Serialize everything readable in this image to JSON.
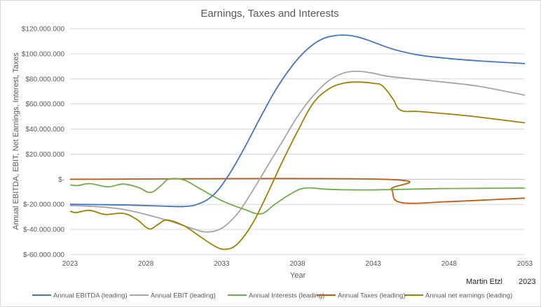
{
  "chart_data": {
    "type": "line",
    "title": "Earnings, Taxes and Interests",
    "xlabel": "Year",
    "ylabel": "Annual EBITDA, EBIT, Net Earnings, Interest, Taxes",
    "xlim": [
      2023,
      2053
    ],
    "ylim": [
      -60000000,
      120000000
    ],
    "x_ticks": [
      2023,
      2028,
      2033,
      2038,
      2043,
      2048,
      2053
    ],
    "y_ticks": [
      {
        "value": 120000000,
        "label": "$120.000.000"
      },
      {
        "value": 100000000,
        "label": "$100.000.000"
      },
      {
        "value": 80000000,
        "label": "$80.000.000"
      },
      {
        "value": 60000000,
        "label": "$60.000.000"
      },
      {
        "value": 40000000,
        "label": "$40.000.000"
      },
      {
        "value": 20000000,
        "label": "$20.000.000"
      },
      {
        "value": 0,
        "label": "$-"
      },
      {
        "value": -20000000,
        "label": "$-20.000.000"
      },
      {
        "value": -40000000,
        "label": "$-40.000.000"
      },
      {
        "value": -60000000,
        "label": "$-60.000.000"
      }
    ],
    "grid": true,
    "legend_position": "bottom",
    "series": [
      {
        "name": "Annual EBITDA (leading)",
        "color": "#4472c4",
        "points": [
          [
            2023,
            -20000000
          ],
          [
            2025,
            -20200000
          ],
          [
            2027,
            -20600000
          ],
          [
            2029,
            -21300000
          ],
          [
            2030.5,
            -21700000
          ],
          [
            2031.5,
            -19500000
          ],
          [
            2032.5,
            -12000000
          ],
          [
            2033.5,
            4000000
          ],
          [
            2034.5,
            25000000
          ],
          [
            2035.5,
            48000000
          ],
          [
            2036.5,
            70000000
          ],
          [
            2037.5,
            88000000
          ],
          [
            2038.5,
            102000000
          ],
          [
            2039.5,
            111000000
          ],
          [
            2040.5,
            114500000
          ],
          [
            2041.5,
            114500000
          ],
          [
            2042.5,
            111500000
          ],
          [
            2043.5,
            107000000
          ],
          [
            2044.5,
            103000000
          ],
          [
            2046,
            99000000
          ],
          [
            2048,
            96200000
          ],
          [
            2050,
            94300000
          ],
          [
            2053,
            92200000
          ]
        ]
      },
      {
        "name": "Annual EBIT (leading)",
        "color": "#a5a5a5",
        "points": [
          [
            2023,
            -21000000
          ],
          [
            2025,
            -22000000
          ],
          [
            2026.5,
            -24000000
          ],
          [
            2028,
            -28000000
          ],
          [
            2029.5,
            -33000000
          ],
          [
            2031,
            -39000000
          ],
          [
            2032,
            -42000000
          ],
          [
            2033,
            -39000000
          ],
          [
            2034,
            -28000000
          ],
          [
            2035,
            -10000000
          ],
          [
            2036,
            10000000
          ],
          [
            2037,
            30000000
          ],
          [
            2038,
            50000000
          ],
          [
            2039,
            66000000
          ],
          [
            2040,
            78000000
          ],
          [
            2041,
            84500000
          ],
          [
            2042,
            86000000
          ],
          [
            2043,
            84500000
          ],
          [
            2044,
            82000000
          ],
          [
            2046,
            79500000
          ],
          [
            2048,
            77000000
          ],
          [
            2050,
            74000000
          ],
          [
            2053,
            67000000
          ]
        ]
      },
      {
        "name": "Annual Interests (leading)",
        "color": "#70ad47",
        "points": [
          [
            2023,
            -4500000
          ],
          [
            2023.5,
            -5000000
          ],
          [
            2024.3,
            -3500000
          ],
          [
            2025.5,
            -6000000
          ],
          [
            2026.5,
            -3800000
          ],
          [
            2027.5,
            -6500000
          ],
          [
            2028.3,
            -10500000
          ],
          [
            2029,
            -5000000
          ],
          [
            2029.5,
            0
          ],
          [
            2030.5,
            -500000
          ],
          [
            2031.5,
            -7000000
          ],
          [
            2033,
            -17000000
          ],
          [
            2034.5,
            -24000000
          ],
          [
            2035.6,
            -27500000
          ],
          [
            2036.5,
            -20000000
          ],
          [
            2037.5,
            -12000000
          ],
          [
            2038.5,
            -7000000
          ],
          [
            2040,
            -8000000
          ],
          [
            2042,
            -8500000
          ],
          [
            2044,
            -8300000
          ],
          [
            2047,
            -7500000
          ],
          [
            2050,
            -7200000
          ],
          [
            2053,
            -7000000
          ]
        ]
      },
      {
        "name": "Annual Taxes (leading)",
        "color": "#c55a11",
        "points": [
          [
            2023,
            0
          ],
          [
            2043.6,
            0
          ],
          [
            2044.2,
            -8000000
          ],
          [
            2044.8,
            -18500000
          ],
          [
            2048,
            -17800000
          ],
          [
            2051,
            -16200000
          ],
          [
            2053,
            -15000000
          ]
        ]
      },
      {
        "name": "Annual net earnings (leading)",
        "color": "#a08000",
        "points": [
          [
            2023,
            -25500000
          ],
          [
            2023.4,
            -26500000
          ],
          [
            2024.3,
            -24800000
          ],
          [
            2025.3,
            -28000000
          ],
          [
            2026.5,
            -27200000
          ],
          [
            2027.4,
            -32000000
          ],
          [
            2028.2,
            -39500000
          ],
          [
            2028.8,
            -36000000
          ],
          [
            2029.4,
            -32500000
          ],
          [
            2030.5,
            -37000000
          ],
          [
            2031.5,
            -45000000
          ],
          [
            2032.5,
            -53000000
          ],
          [
            2033.2,
            -55800000
          ],
          [
            2034,
            -52000000
          ],
          [
            2035,
            -36000000
          ],
          [
            2036,
            -12000000
          ],
          [
            2037,
            14000000
          ],
          [
            2038,
            38000000
          ],
          [
            2039,
            60000000
          ],
          [
            2040,
            71500000
          ],
          [
            2041,
            76500000
          ],
          [
            2042,
            77500000
          ],
          [
            2043,
            76500000
          ],
          [
            2043.6,
            74500000
          ],
          [
            2044.3,
            64000000
          ],
          [
            2044.8,
            55000000
          ],
          [
            2046,
            54000000
          ],
          [
            2048,
            52000000
          ],
          [
            2050,
            49500000
          ],
          [
            2053,
            45000000
          ]
        ]
      }
    ]
  },
  "annotations": {
    "author": "Martin Etzl",
    "year": "2023"
  }
}
